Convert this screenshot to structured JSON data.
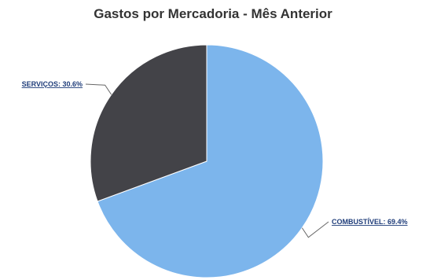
{
  "chart_data": {
    "type": "pie",
    "title": "Gastos por Mercadoria - Mês Anterior",
    "slices": [
      {
        "label": "COMBUSTÍVEL: 69.4%",
        "category": "COMBUSTÍVEL",
        "value": 69.4,
        "color": "#7cb5ec"
      },
      {
        "label": "SERVIÇOS: 30.6%",
        "category": "SERVIÇOS",
        "value": 30.6,
        "color": "#434348"
      }
    ],
    "legend": "none"
  }
}
